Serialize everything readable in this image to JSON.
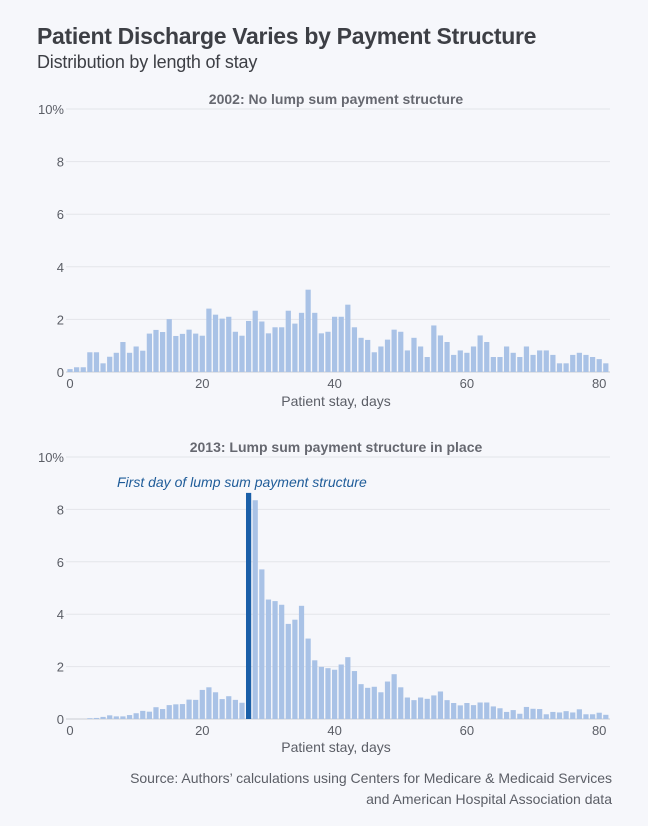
{
  "header": {
    "title": "Patient Discharge Varies by Payment Structure",
    "subtitle": "Distribution by length of stay"
  },
  "colors": {
    "bar": "#a9c2e6",
    "highlight_bar": "#1a5fa8",
    "annotation": "#1f5c99",
    "grid": "#e3e5ea",
    "text": "#5b5e66",
    "panel_title": "#666870"
  },
  "source": {
    "line1": "Source: Authors’ calculations using Centers for Medicare & Medicaid Services",
    "line2": "and American Hospital Association data"
  },
  "chart_data": [
    {
      "type": "bar",
      "title": "2002: No lump sum payment structure",
      "xlabel": "Patient stay, days",
      "ylabel": "",
      "ylim": [
        0,
        10
      ],
      "xlim": [
        0,
        81
      ],
      "yticks": [
        "0",
        "2",
        "4",
        "6",
        "8",
        "10%"
      ],
      "ytick_values": [
        0,
        2,
        4,
        6,
        8,
        10
      ],
      "xticks": [
        "0",
        "20",
        "40",
        "60",
        "80"
      ],
      "xtick_values": [
        0,
        20,
        40,
        60,
        80
      ],
      "grid": true,
      "x": [
        0,
        1,
        2,
        3,
        4,
        5,
        6,
        7,
        8,
        9,
        10,
        11,
        12,
        13,
        14,
        15,
        16,
        17,
        18,
        19,
        20,
        21,
        22,
        23,
        24,
        25,
        26,
        27,
        28,
        29,
        30,
        31,
        32,
        33,
        34,
        35,
        36,
        37,
        38,
        39,
        40,
        41,
        42,
        43,
        44,
        45,
        46,
        47,
        48,
        49,
        50,
        51,
        52,
        53,
        54,
        55,
        56,
        57,
        58,
        59,
        60,
        61,
        62,
        63,
        64,
        65,
        66,
        67,
        68,
        69,
        70,
        71,
        72,
        73,
        74,
        75,
        76,
        77,
        78,
        79,
        80,
        81
      ],
      "values": [
        0.11,
        0.18,
        0.18,
        0.75,
        0.75,
        0.33,
        0.58,
        0.73,
        1.14,
        0.73,
        0.97,
        0.81,
        1.46,
        1.6,
        1.52,
        2.01,
        1.37,
        1.45,
        1.61,
        1.46,
        1.38,
        2.41,
        2.18,
        2.03,
        2.1,
        1.53,
        1.38,
        1.94,
        2.33,
        1.92,
        1.47,
        1.7,
        1.7,
        2.33,
        1.84,
        2.25,
        3.13,
        2.25,
        1.47,
        1.53,
        2.1,
        2.1,
        2.56,
        1.7,
        1.3,
        1.22,
        0.75,
        0.97,
        1.23,
        1.61,
        1.53,
        0.82,
        1.3,
        0.97,
        0.57,
        1.77,
        1.39,
        1.14,
        0.65,
        0.82,
        0.73,
        0.97,
        1.39,
        1.14,
        0.57,
        0.57,
        0.97,
        0.73,
        0.57,
        0.97,
        0.65,
        0.82,
        0.82,
        0.65,
        0.33,
        0.33,
        0.65,
        0.73,
        0.65,
        0.57,
        0.49,
        0.33
      ],
      "highlight_index": null
    },
    {
      "type": "bar",
      "title": "2013: Lump sum payment structure in place",
      "xlabel": "Patient stay, days",
      "ylabel": "",
      "ylim": [
        0,
        10
      ],
      "xlim": [
        0,
        81
      ],
      "yticks": [
        "0",
        "2",
        "4",
        "6",
        "8",
        "10%"
      ],
      "ytick_values": [
        0,
        2,
        4,
        6,
        8,
        10
      ],
      "xticks": [
        "0",
        "20",
        "40",
        "60",
        "80"
      ],
      "xtick_values": [
        0,
        20,
        40,
        60,
        80
      ],
      "grid": true,
      "x": [
        0,
        1,
        2,
        3,
        4,
        5,
        6,
        7,
        8,
        9,
        10,
        11,
        12,
        13,
        14,
        15,
        16,
        17,
        18,
        19,
        20,
        21,
        22,
        23,
        24,
        25,
        26,
        27,
        28,
        29,
        30,
        31,
        32,
        33,
        34,
        35,
        36,
        37,
        38,
        39,
        40,
        41,
        42,
        43,
        44,
        45,
        46,
        47,
        48,
        49,
        50,
        51,
        52,
        53,
        54,
        55,
        56,
        57,
        58,
        59,
        60,
        61,
        62,
        63,
        64,
        65,
        66,
        67,
        68,
        69,
        70,
        71,
        72,
        73,
        74,
        75,
        76,
        77,
        78,
        79,
        80,
        81
      ],
      "values": [
        0,
        0,
        0,
        0.02,
        0.04,
        0.08,
        0.14,
        0.1,
        0.1,
        0.15,
        0.22,
        0.31,
        0.28,
        0.45,
        0.38,
        0.53,
        0.56,
        0.57,
        0.74,
        0.73,
        1.11,
        1.21,
        1.02,
        0.76,
        0.87,
        0.73,
        0.62,
        8.63,
        8.35,
        5.71,
        4.56,
        4.5,
        4.36,
        3.63,
        3.79,
        4.32,
        3.07,
        2.24,
        1.99,
        1.94,
        1.88,
        2.08,
        2.36,
        1.83,
        1.33,
        1.19,
        1.23,
        1.02,
        1.43,
        1.71,
        1.21,
        0.82,
        0.72,
        0.82,
        0.77,
        0.9,
        1.05,
        0.72,
        0.61,
        0.52,
        0.61,
        0.53,
        0.63,
        0.63,
        0.48,
        0.41,
        0.27,
        0.34,
        0.2,
        0.46,
        0.39,
        0.38,
        0.18,
        0.27,
        0.25,
        0.3,
        0.25,
        0.37,
        0.18,
        0.18,
        0.24,
        0.16
      ],
      "highlight_index": 27,
      "annotation": "First day of lump sum payment structure"
    }
  ]
}
